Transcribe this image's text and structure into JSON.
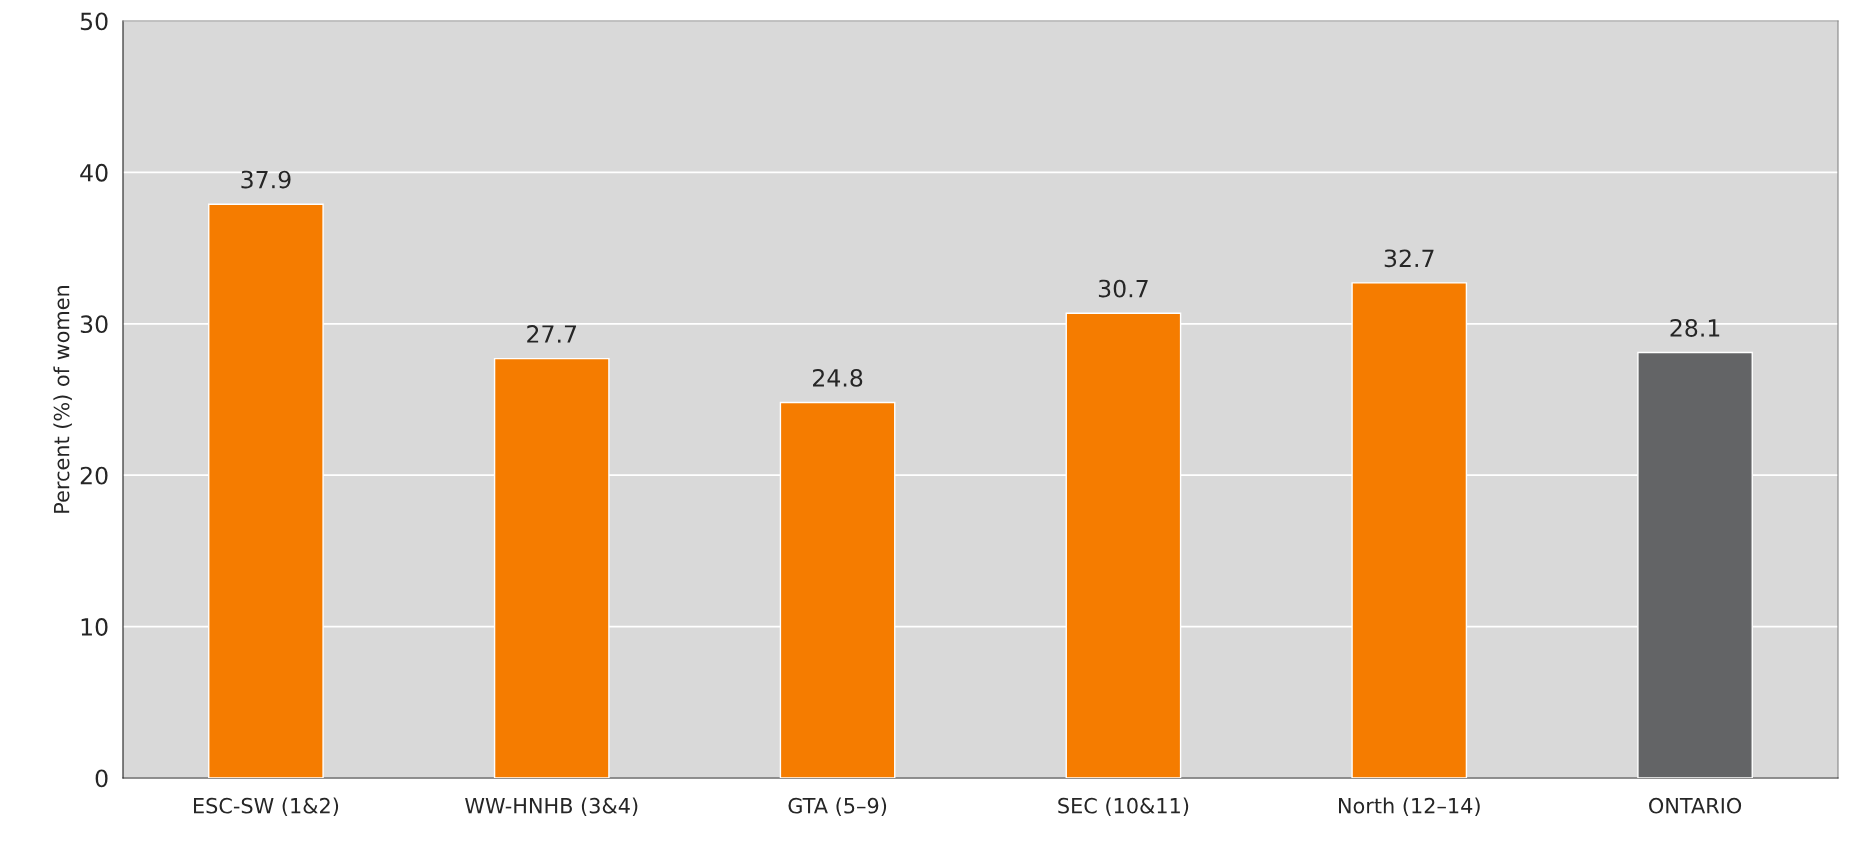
{
  "chart_data": {
    "type": "bar",
    "ylabel": "Percent (%) of women",
    "categories": [
      "ESC-SW (1&2)",
      "WW-HNHB (3&4)",
      "GTA (5–9)",
      "SEC (10&11)",
      "North (12–14)",
      "ONTARIO"
    ],
    "values": [
      37.9,
      27.7,
      24.8,
      30.7,
      32.7,
      28.1
    ],
    "colors": [
      "#f57c00",
      "#f57c00",
      "#f57c00",
      "#f57c00",
      "#f57c00",
      "#636466"
    ],
    "ylim": [
      0,
      50
    ],
    "yticks": [
      0,
      10,
      20,
      30,
      40,
      50
    ],
    "grid": "y",
    "data_labels": true
  }
}
